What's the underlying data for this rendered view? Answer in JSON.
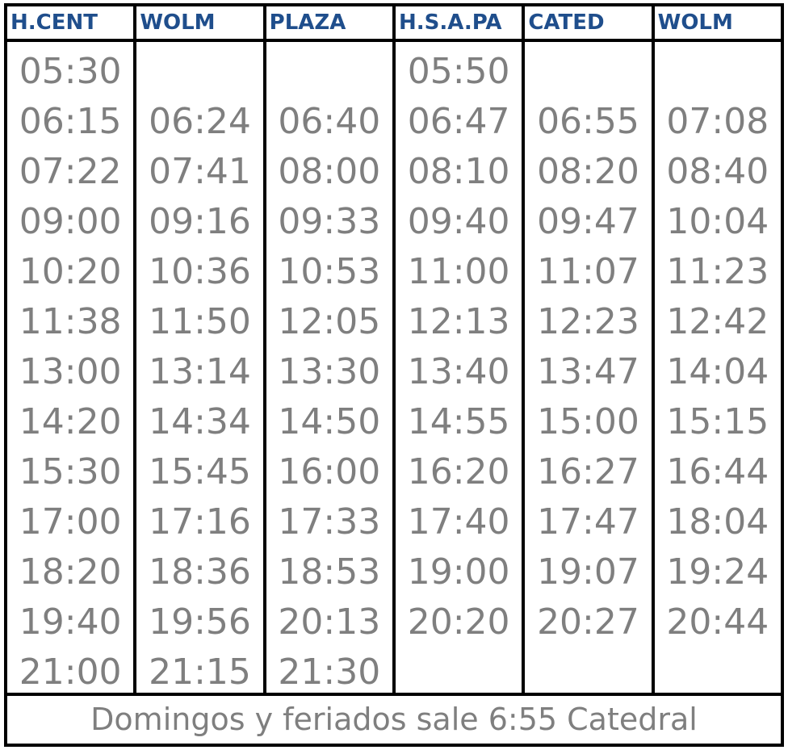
{
  "colors": {
    "header_text": "#1f4e8c",
    "time_text": "#7f7f7f",
    "grid_lines": "#000000"
  },
  "schedule": {
    "headers": [
      "H.CENT",
      "WOLM",
      "PLAZA",
      "H.S.A.PA",
      "CATED",
      "WOLM"
    ],
    "columns": [
      [
        "05:30",
        "06:15",
        "07:22",
        "09:00",
        "10:20",
        "11:38",
        "13:00",
        "14:20",
        "15:30",
        "17:00",
        "18:20",
        "19:40",
        "21:00"
      ],
      [
        "",
        "06:24",
        "07:41",
        "09:16",
        "10:36",
        "11:50",
        "13:14",
        "14:34",
        "15:45",
        "17:16",
        "18:36",
        "19:56",
        "21:15"
      ],
      [
        "",
        "06:40",
        "08:00",
        "09:33",
        "10:53",
        "12:05",
        "13:30",
        "14:50",
        "16:00",
        "17:33",
        "18:53",
        "20:13",
        "21:30"
      ],
      [
        "05:50",
        "06:47",
        "08:10",
        "09:40",
        "11:00",
        "12:13",
        "13:40",
        "14:55",
        "16:20",
        "17:40",
        "19:00",
        "20:20",
        ""
      ],
      [
        "",
        "06:55",
        "08:20",
        "09:47",
        "11:07",
        "12:23",
        "13:47",
        "15:00",
        "16:27",
        "17:47",
        "19:07",
        "20:27",
        ""
      ],
      [
        "",
        "07:08",
        "08:40",
        "10:04",
        "11:23",
        "12:42",
        "14:04",
        "15:15",
        "16:44",
        "18:04",
        "19:24",
        "20:44",
        ""
      ]
    ],
    "footer_note": "Domingos y feriados sale 6:55 Catedral"
  }
}
